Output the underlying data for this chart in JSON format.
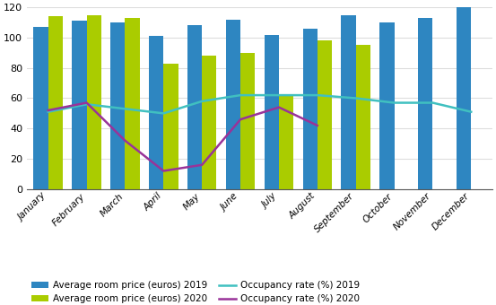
{
  "months": [
    "January",
    "February",
    "March",
    "April",
    "May",
    "June",
    "July",
    "August",
    "September",
    "October",
    "November",
    "December"
  ],
  "price_2019": [
    107,
    111,
    110,
    101,
    108,
    112,
    102,
    106,
    115,
    110,
    113,
    120
  ],
  "price_2020": [
    114,
    115,
    113,
    83,
    88,
    90,
    62,
    98,
    95,
    null,
    null,
    null
  ],
  "occupancy_2019": [
    51,
    56,
    53,
    50,
    58,
    62,
    62,
    62,
    60,
    57,
    57,
    51
  ],
  "occupancy_2020": [
    52,
    57,
    32,
    12,
    16,
    46,
    54,
    42,
    null,
    null,
    null,
    null
  ],
  "bar_color_2019": "#2E86C1",
  "bar_color_2020": "#AACC00",
  "line_color_2019": "#40C0C0",
  "line_color_2020": "#993399",
  "ylim": [
    0,
    120
  ],
  "yticks": [
    0,
    20,
    40,
    60,
    80,
    100,
    120
  ],
  "legend_labels": [
    "Average room price (euros) 2019",
    "Average room price (euros) 2020",
    "Occupancy rate (%) 2019",
    "Occupancy rate (%) 2020"
  ],
  "background_color": "#ffffff",
  "grid_color": "#dddddd"
}
